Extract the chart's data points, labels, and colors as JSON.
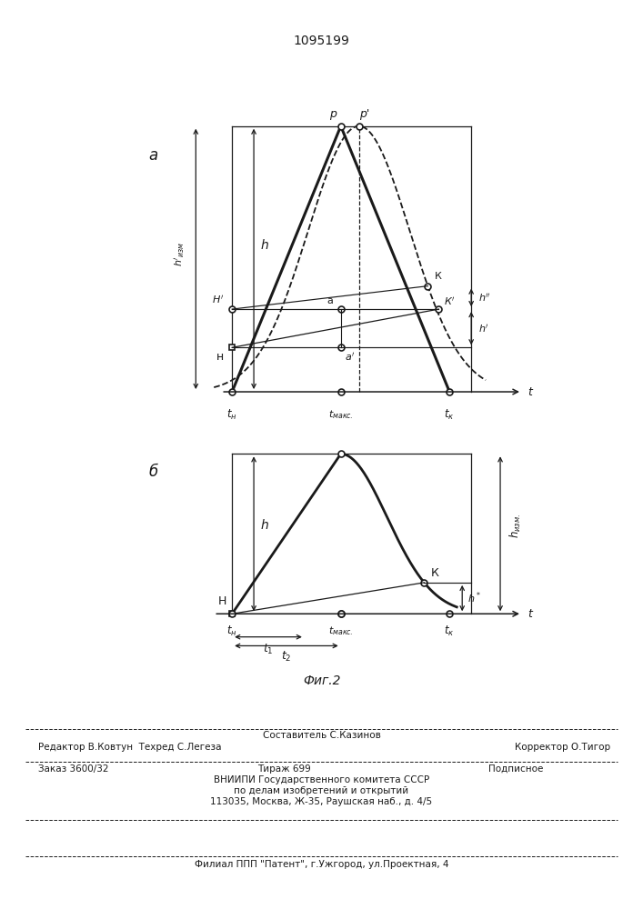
{
  "title": "1095199",
  "line_color": "#1a1a1a",
  "fig_a_label": "а",
  "fig_b_label": "б",
  "fig_caption": "Фиг.2",
  "footer": {
    "line1_center": "Составитель С.Казинов",
    "line2_left": "Редактор В.Ковтун  Техред С.Легеза",
    "line2_right": "Корректор О.Тигор",
    "line3_left": "Заказ 3600/32",
    "line3_mid": "Тираж 699",
    "line3_right": "Подписное",
    "line4": "ВНИИПИ Государственного комитета СССР",
    "line5": "по делам изобретений и открытий",
    "line6": "113035, Москва, Ж-35, Раушская наб., д. 4/5",
    "line7": "Филиал ППП \"Патент\", г.Ужгород, ул.Проектная, 4"
  }
}
